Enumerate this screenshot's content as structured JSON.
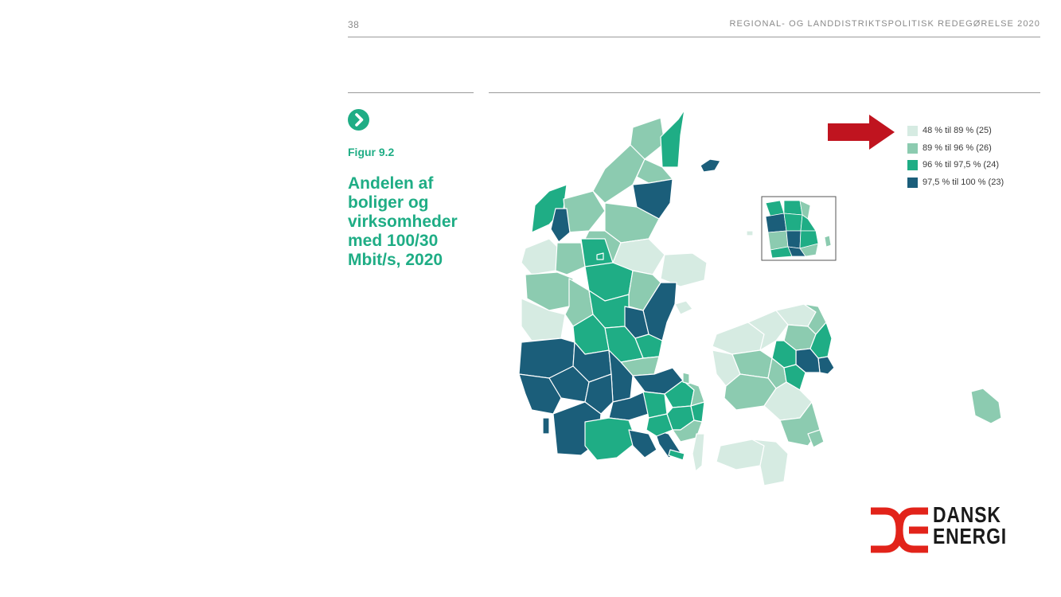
{
  "header": {
    "page_number": "38",
    "running_title": "REGIONAL- OG LANDDISTRIKTSPOLITISK REDEGØRELSE 2020"
  },
  "figure": {
    "label": "Figur 9.2",
    "title": "Andelen af boliger og virksomheder med 100/30 Mbit/s, 2020"
  },
  "legend": [
    {
      "text": "48 % til 89 % (25)",
      "color": "#d6ebe2"
    },
    {
      "text": "89 % til 96 % (26)",
      "color": "#8ccbb0"
    },
    {
      "text": "96 % til 97,5 % (24)",
      "color": "#1fad85"
    },
    {
      "text": "97,5 % til 100 % (23)",
      "color": "#1b5e7a"
    }
  ],
  "annotation": {
    "arrow_color": "#c0141f"
  },
  "logo": {
    "line1": "DANSK",
    "line2": "ENERGI",
    "color": "#e2231a"
  }
}
